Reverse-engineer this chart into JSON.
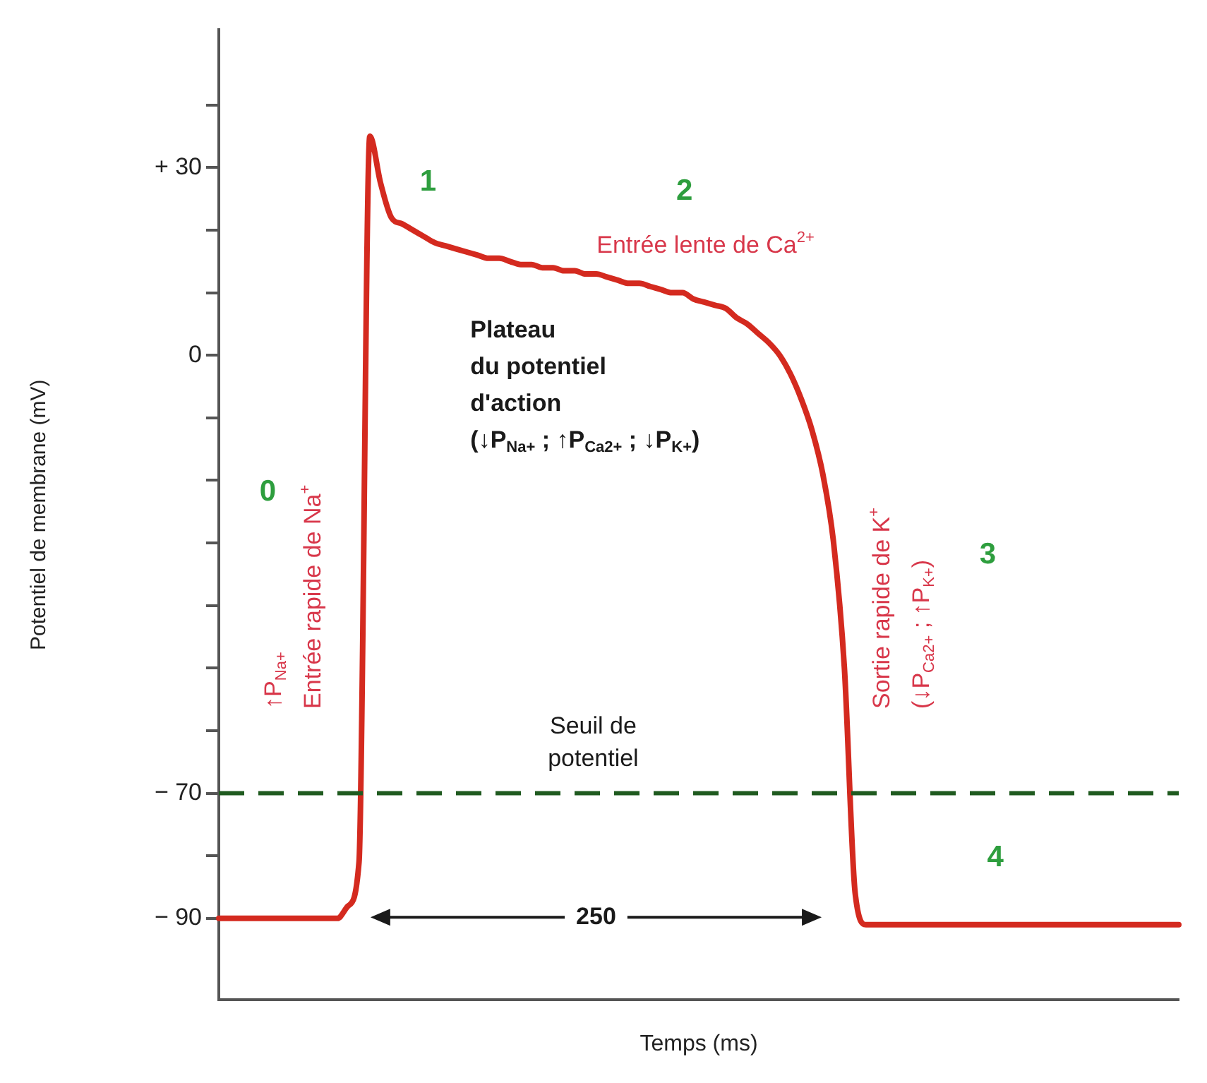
{
  "chart_data": {
    "type": "line",
    "xlabel": "Temps (ms)",
    "ylabel": "Potentiel de membrane (mV)",
    "categories": [
      null,
      null,
      null,
      null,
      null,
      null,
      null,
      null,
      null,
      null,
      null,
      null,
      null,
      null,
      null,
      null,
      null,
      null,
      null,
      null,
      null,
      null,
      null,
      null,
      null,
      null,
      null,
      null,
      null,
      null,
      null,
      null,
      null,
      null,
      null,
      null,
      null,
      null,
      null,
      null,
      null,
      null,
      null,
      null,
      null,
      null,
      null,
      null,
      null,
      null,
      null,
      null,
      null,
      null,
      null,
      null,
      null,
      null,
      null,
      null,
      null,
      null,
      null,
      null,
      null,
      null,
      null,
      null,
      null,
      null,
      null,
      null,
      null,
      null,
      null,
      null,
      null,
      null,
      null,
      null,
      null,
      null,
      null,
      null,
      null,
      null,
      null,
      null,
      null,
      null
    ],
    "series": [
      {
        "color": "#d42a1f",
        "values": [
          -90,
          -90,
          -90,
          -90,
          -90,
          -90,
          -90,
          -90,
          -90,
          -90,
          -90,
          -90,
          -88,
          -81,
          35,
          27.5,
          22,
          21,
          20,
          19,
          18,
          17.5,
          17,
          16.5,
          16,
          15.5,
          15.5,
          15,
          14.5,
          14.5,
          14,
          14,
          13.5,
          13.5,
          13,
          13,
          12.5,
          12,
          11.5,
          11.5,
          11,
          10.5,
          10,
          10,
          9,
          8.5,
          8,
          7.5,
          6,
          5,
          3.5,
          2,
          0,
          -3,
          -7,
          -12,
          -19,
          -30,
          -50,
          -86,
          -91,
          -91,
          -91,
          -91,
          -91,
          -91,
          -91,
          -91,
          -91,
          -91,
          -91,
          -91,
          -91,
          -91,
          -91,
          -91,
          -91,
          -91,
          -91,
          -91,
          -91,
          -91,
          -91,
          -91,
          -91,
          -91,
          -91,
          -91,
          -91,
          -91
        ]
      }
    ],
    "ylim": [
      -103,
      52
    ],
    "yticks": [
      {
        "value": 40,
        "label": null
      },
      {
        "value": 30,
        "label": "+ 30"
      },
      {
        "value": 20,
        "label": null
      },
      {
        "value": 10,
        "label": null
      },
      0,
      {
        "value": -10,
        "label": null
      },
      {
        "value": -20,
        "label": null
      },
      {
        "value": -30,
        "label": null
      },
      {
        "value": -40,
        "label": null
      },
      {
        "value": -50,
        "label": null
      },
      {
        "value": -60,
        "label": null
      },
      {
        "value": -70,
        "label": "− 70"
      },
      {
        "value": -80,
        "label": null
      },
      {
        "value": -90,
        "label": "− 90"
      }
    ],
    "tick_labels": "y",
    "grid": false,
    "legend": false,
    "ref_lines": [
      {
        "axis": "y",
        "value": -70,
        "label": "Seuil de\npotentiel",
        "color": "#1f5a1f",
        "line_style": "dashed"
      }
    ],
    "annotations": [
      "0",
      "1",
      "2",
      "3",
      "4",
      "Entrée lente de Ca$^{2+}$",
      "Plateau\ndu potentiel\nd'action\n(↓P$_{Na+}$ ; ↑P$_{Ca2+}$ ; ↓P$_{K+}$)",
      "↑P$_{Na+}$\nEntrée rapide de Na$^{+}$",
      "Sortie rapide de K$^{+}$\n(↓P$_{Ca2+}$ ; ↑P$_{K+}$)",
      "250"
    ]
  }
}
